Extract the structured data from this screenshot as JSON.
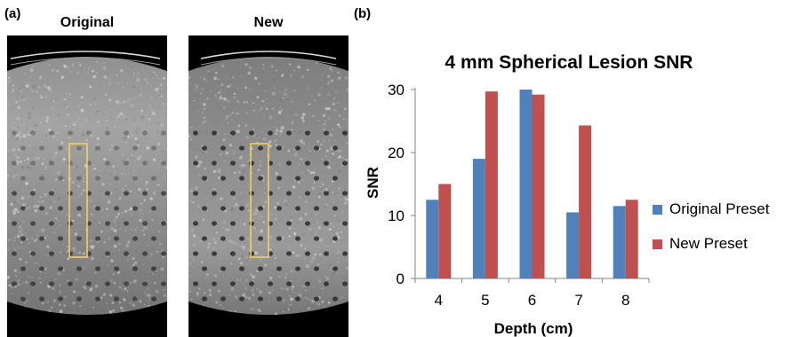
{
  "panels": {
    "a": {
      "label": "(a)",
      "left_title": "Original",
      "right_title": "New"
    },
    "b": {
      "label": "(b)"
    }
  },
  "colors": {
    "original": "#4F81BD",
    "new": "#C0504D",
    "roi_box": "#F2D25C"
  },
  "chart_data": {
    "type": "bar",
    "title": "4 mm Spherical Lesion SNR",
    "xlabel": "Depth (cm)",
    "ylabel": "SNR",
    "categories": [
      "4",
      "5",
      "6",
      "7",
      "8"
    ],
    "ylim": [
      0,
      30
    ],
    "yticks": [
      0,
      10,
      20,
      30
    ],
    "series": [
      {
        "name": "Original Preset",
        "values": [
          12.5,
          19,
          30,
          10.5,
          11.5
        ]
      },
      {
        "name": "New Preset",
        "values": [
          15,
          29.7,
          29.2,
          24.3,
          12.5
        ]
      }
    ],
    "grid": false,
    "legend": "right"
  }
}
